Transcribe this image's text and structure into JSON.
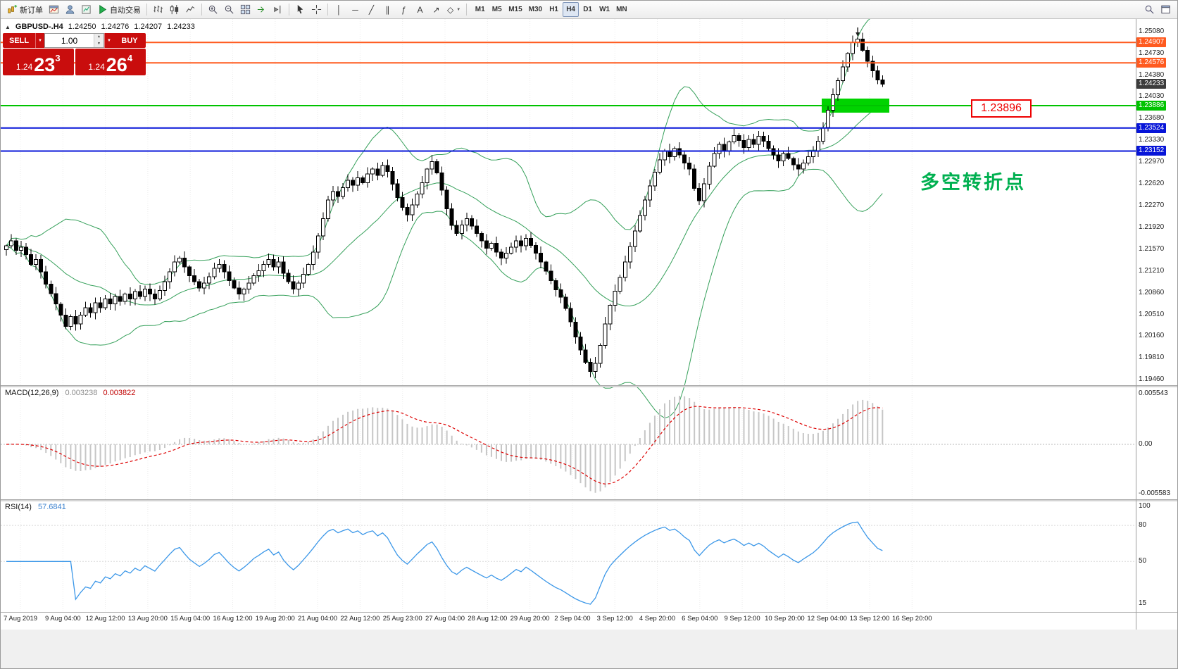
{
  "toolbar": {
    "new_order_label": "新订单",
    "auto_trading_label": "自动交易",
    "timeframes": [
      "M1",
      "M5",
      "M15",
      "M30",
      "H1",
      "H4",
      "D1",
      "W1",
      "MN"
    ],
    "active_timeframe": "H4"
  },
  "icons": {
    "dropdown": "▼",
    "vline": "│",
    "hline": "─",
    "trendline": "╱",
    "channel": "∥",
    "fibonacci": "ƒ",
    "text_tool": "A",
    "arrow_tool": "↗",
    "shapes_tool": "◇",
    "spin_up": "▲",
    "spin_down": "▼",
    "oct_toggle": "▲"
  },
  "symbol_bar": {
    "symbol": "GBPUSD-.H4",
    "open": "1.24250",
    "high": "1.24276",
    "low": "1.24207",
    "close": "1.24233"
  },
  "quote_panel": {
    "sell_label": "SELL",
    "buy_label": "BUY",
    "volume": "1.00",
    "sell_big": "1.24",
    "sell_pips": "23",
    "sell_sup": "3",
    "buy_big": "1.24",
    "buy_pips": "26",
    "buy_sup": "4",
    "color": "#c90d0d"
  },
  "main_chart": {
    "bollinger_color": "#35a05a",
    "hlines": [
      {
        "price": 1.24907,
        "color": "#ff5a1f"
      },
      {
        "price": 1.24576,
        "color": "#ff5a1f"
      },
      {
        "price": 1.23886,
        "color": "#00c300"
      },
      {
        "price": 1.23524,
        "color": "#0715d8"
      },
      {
        "price": 1.23152,
        "color": "#0715d8"
      }
    ],
    "price_scale": [
      {
        "label": "1.25080",
        "price": 1.2508,
        "style": "plain"
      },
      {
        "label": "1.24907",
        "price": 1.24907,
        "style": "orange"
      },
      {
        "label": "1.24730",
        "price": 1.2473,
        "style": "plain"
      },
      {
        "label": "1.24576",
        "price": 1.24576,
        "style": "orange"
      },
      {
        "label": "1.24380",
        "price": 1.2438,
        "style": "plain"
      },
      {
        "label": "1.24233",
        "price": 1.24233,
        "style": "current"
      },
      {
        "label": "1.24030",
        "price": 1.2403,
        "style": "plain"
      },
      {
        "label": "1.23886",
        "price": 1.23886,
        "style": "green"
      },
      {
        "label": "1.23680",
        "price": 1.2368,
        "style": "plain"
      },
      {
        "label": "1.23524",
        "price": 1.23524,
        "style": "blue"
      },
      {
        "label": "1.23330",
        "price": 1.2333,
        "style": "plain"
      },
      {
        "label": "1.23152",
        "price": 1.23152,
        "style": "blue"
      },
      {
        "label": "1.22970",
        "price": 1.2297,
        "style": "plain"
      },
      {
        "label": "1.22620",
        "price": 1.2262,
        "style": "plain"
      },
      {
        "label": "1.22270",
        "price": 1.2227,
        "style": "plain"
      },
      {
        "label": "1.21920",
        "price": 1.2192,
        "style": "plain"
      },
      {
        "label": "1.21570",
        "price": 1.2157,
        "style": "plain"
      },
      {
        "label": "1.21210",
        "price": 1.2121,
        "style": "plain"
      },
      {
        "label": "1.20860",
        "price": 1.2086,
        "style": "plain"
      },
      {
        "label": "1.20510",
        "price": 1.2051,
        "style": "plain"
      },
      {
        "label": "1.20160",
        "price": 1.2016,
        "style": "plain"
      },
      {
        "label": "1.19810",
        "price": 1.1981,
        "style": "plain"
      },
      {
        "label": "1.19460",
        "price": 1.1946,
        "style": "plain"
      }
    ]
  },
  "macd": {
    "name": "MACD(12,26,9)",
    "value": "0.003238",
    "signal": "0.003822",
    "scale": [
      "0.005543",
      "0.00",
      "-0.005583"
    ]
  },
  "rsi": {
    "name": "RSI(14)",
    "value": "57.6841",
    "levels": [
      "100",
      "80",
      "50",
      "15"
    ]
  },
  "annotations": {
    "support_label": "1.23896",
    "note": "多空转折点",
    "note_color": "#00b050",
    "label_color": "#ee0000",
    "rect_color": "#00d300"
  },
  "chart_data": {
    "type": "candlestick",
    "symbol": "GBPUSD",
    "timeframe": "H4",
    "y_axis": {
      "min": 1.1946,
      "max": 1.2508
    },
    "x_labels": [
      "7 Aug 2019",
      "9 Aug 04:00",
      "12 Aug 12:00",
      "13 Aug 20:00",
      "15 Aug 04:00",
      "16 Aug 12:00",
      "19 Aug 20:00",
      "21 Aug 04:00",
      "22 Aug 12:00",
      "25 Aug 23:00",
      "27 Aug 04:00",
      "28 Aug 12:00",
      "29 Aug 20:00",
      "2 Sep 04:00",
      "3 Sep 12:00",
      "4 Sep 20:00",
      "6 Sep 04:00",
      "9 Sep 12:00",
      "10 Sep 20:00",
      "12 Sep 04:00",
      "13 Sep 12:00",
      "16 Sep 20:00"
    ],
    "closes": [
      1.2162,
      1.217,
      1.2155,
      1.216,
      1.2148,
      1.2132,
      1.214,
      1.212,
      1.21,
      1.2085,
      1.2068,
      1.205,
      1.2032,
      1.2048,
      1.2036,
      1.205,
      1.2062,
      1.2054,
      1.207,
      1.2062,
      1.2076,
      1.2068,
      1.208,
      1.2072,
      1.2084,
      1.2076,
      1.2088,
      1.208,
      1.2092,
      1.2084,
      1.2076,
      1.209,
      1.2104,
      1.212,
      1.2136,
      1.2142,
      1.2128,
      1.2114,
      1.2104,
      1.2094,
      1.2102,
      1.2112,
      1.2126,
      1.2132,
      1.212,
      1.2106,
      1.2094,
      1.2084,
      1.2092,
      1.2102,
      1.2114,
      1.2122,
      1.2132,
      1.214,
      1.2128,
      1.2136,
      1.2118,
      1.2104,
      1.2092,
      1.2102,
      1.2116,
      1.2132,
      1.2152,
      1.2178,
      1.2206,
      1.2236,
      1.225,
      1.2242,
      1.2256,
      1.2268,
      1.226,
      1.2272,
      1.2264,
      1.2278,
      1.2286,
      1.2276,
      1.2292,
      1.2282,
      1.2262,
      1.224,
      1.2224,
      1.2212,
      1.2228,
      1.2246,
      1.2264,
      1.2286,
      1.2298,
      1.228,
      1.2252,
      1.2222,
      1.2195,
      1.2182,
      1.2196,
      1.2206,
      1.2194,
      1.2182,
      1.217,
      1.2158,
      1.2166,
      1.2152,
      1.2142,
      1.215,
      1.216,
      1.217,
      1.2162,
      1.2174,
      1.2163,
      1.215,
      1.2136,
      1.2121,
      1.2106,
      1.2091,
      1.2079,
      1.2061,
      1.2039,
      1.2015,
      1.1994,
      1.1974,
      1.1959,
      1.1972,
      1.2001,
      1.2036,
      1.2066,
      1.2089,
      1.2111,
      1.2136,
      1.2161,
      1.2186,
      1.2211,
      1.2236,
      1.2259,
      1.2281,
      1.2301,
      1.2316,
      1.2306,
      1.2319,
      1.2309,
      1.2296,
      1.2286,
      1.2255,
      1.2235,
      1.2262,
      1.2291,
      1.2311,
      1.2326,
      1.2316,
      1.233,
      1.234,
      1.2332,
      1.2321,
      1.2334,
      1.2326,
      1.2339,
      1.2331,
      1.2319,
      1.2309,
      1.2299,
      1.2311,
      1.2303,
      1.2293,
      1.2286,
      1.2296,
      1.2306,
      1.2316,
      1.2331,
      1.2353,
      1.2381,
      1.2406,
      1.2429,
      1.2451,
      1.2473,
      1.2491,
      1.2496,
      1.2478,
      1.246,
      1.2445,
      1.243,
      1.24233
    ],
    "indicators": [
      {
        "name": "Bollinger Bands",
        "period": 20,
        "deviation": 2
      },
      {
        "name": "MACD",
        "fast": 12,
        "slow": 26,
        "signal_period": 9,
        "value": 0.003238,
        "signal": 0.003822
      },
      {
        "name": "RSI",
        "period": 14,
        "value": 57.6841
      }
    ]
  }
}
